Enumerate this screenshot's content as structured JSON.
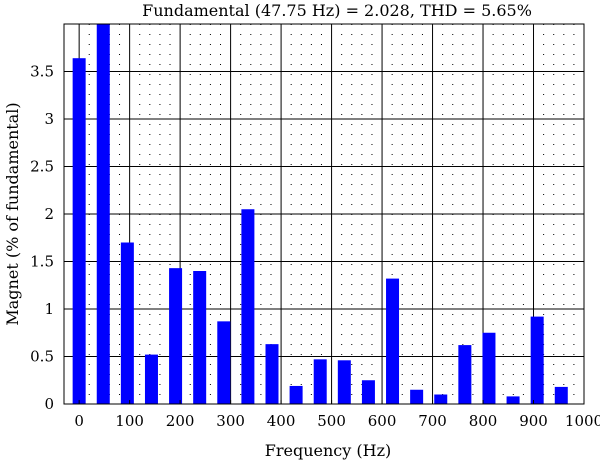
{
  "chart_data": {
    "type": "bar",
    "title": "Fundamental (47.75 Hz) = 2.028, THD = 5.65%",
    "xlabel": "Frequency (Hz)",
    "ylabel": "Magnet (% of fundamental)",
    "xlim": [
      -30,
      1000
    ],
    "ylim": [
      0,
      4
    ],
    "x_ticks": [
      0,
      100,
      200,
      300,
      400,
      500,
      600,
      700,
      800,
      900,
      1000
    ],
    "x_tick_labels": [
      "0",
      "100",
      "200",
      "300",
      "400",
      "500",
      "600",
      "700",
      "800",
      "900",
      "1000"
    ],
    "y_ticks": [
      0,
      0.5,
      1,
      1.5,
      2,
      2.5,
      3,
      3.5
    ],
    "y_tick_labels": [
      "0",
      "0.5",
      "1",
      "1.5",
      "2",
      "2.5",
      "3",
      "3.5"
    ],
    "grid": true,
    "bar_color": "#0000ff",
    "x": [
      0,
      47.75,
      95.5,
      143.25,
      191,
      238.75,
      286.5,
      334.25,
      382,
      429.75,
      477.5,
      525.25,
      573,
      620.75,
      668.5,
      716.25,
      764,
      811.75,
      859.5,
      907.25,
      955
    ],
    "values": [
      3.64,
      4.0,
      1.7,
      0.52,
      1.43,
      1.4,
      0.87,
      2.05,
      0.63,
      0.19,
      0.47,
      0.46,
      0.25,
      1.32,
      0.15,
      0.1,
      0.62,
      0.75,
      0.08,
      0.92,
      0.18
    ]
  }
}
